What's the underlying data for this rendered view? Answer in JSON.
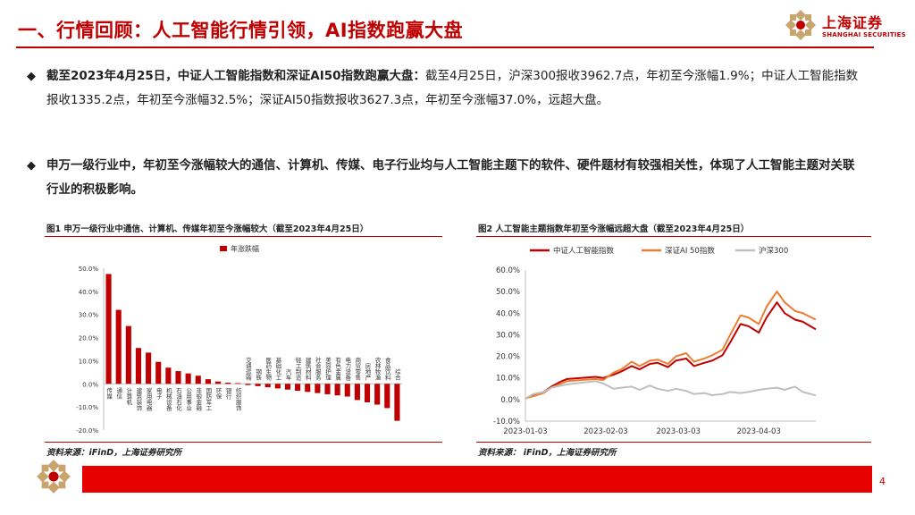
{
  "header": {
    "title": "一、行情回顾：人工智能行情引领，AI指数跑赢大盘",
    "logo_cn": "上海证券",
    "logo_en": "SHANGHAI SECURITIES"
  },
  "bullets": [
    {
      "icon": "diamond-bullet-icon",
      "bold": "截至2023年4月25日，中证人工智能指数和深证AI50指数跑赢大盘：",
      "text": "截至4月25日，沪深300报收3962.7点，年初至今涨幅1.9%；中证人工智能指数报收1335.2点，年初至今涨幅32.5%；深证AI50指数报收3627.3点，年初至今涨幅37.0%，远超大盘。"
    },
    {
      "icon": "diamond-bullet-icon",
      "bold": "申万一级行业中，年初至今涨幅较大的通信、计算机、传媒、电子行业均与人工智能主题下的软件、硬件题材有较强相关性，体现了人工智能主题对关联行业的积极影响。",
      "text": ""
    }
  ],
  "figure1": {
    "caption": "图1  申万一级行业中通信、计算机、传媒年初至今涨幅较大（截至2023年4月25日）",
    "source": "资料来源：iFinD，上海证券研究所"
  },
  "figure2": {
    "caption": "图2  人工智能主题指数年初至今涨幅远超大盘（截至2023年4月25日）",
    "source": "资料来源：  iFinD，上海证券研究所"
  },
  "page_number": "4",
  "colors": {
    "brand_red": "#c00000",
    "footer_red": "#e60000",
    "bar_red": "#c00000",
    "line_dark_red": "#c00000",
    "line_orange": "#ed7d31",
    "line_gray": "#bfbfbf"
  },
  "chart_data": [
    {
      "type": "bar",
      "title": "",
      "legend": [
        "年涨跌幅"
      ],
      "legend_position": "top-center",
      "ylim": [
        -20,
        50
      ],
      "yticks": [
        "50.0%",
        "40.0%",
        "30.0%",
        "20.0%",
        "10.0%",
        "0.0%",
        "-10.0%",
        "-20.0%"
      ],
      "categories": [
        "传媒",
        "通信",
        "计算机",
        "建筑装饰",
        "家用电器",
        "电子",
        "机械设备",
        "石油石化",
        "公用事业",
        "非银金融",
        "国防军工",
        "环保",
        "银行",
        "纺织服饰",
        "交通运输",
        "钢铁",
        "医药生物",
        "基础化工",
        "汽车",
        "轻工制造",
        "建筑材料",
        "社会服务",
        "美容护理",
        "有色金属",
        "电力设备",
        "商贸零售",
        "房地产",
        "农林牧渔",
        "食品饮料",
        "综合"
      ],
      "series": [
        {
          "name": "年涨跌幅",
          "values": [
            47.5,
            32.0,
            25.0,
            15.5,
            13.5,
            9.5,
            7.0,
            5.5,
            4.5,
            3.5,
            2.0,
            1.0,
            0.5,
            0.3,
            -0.5,
            -1.0,
            -1.5,
            -2.0,
            -2.5,
            -3.0,
            -3.5,
            -4.0,
            -4.5,
            -5.0,
            -5.5,
            -7.0,
            -8.0,
            -9.0,
            -10.5,
            -16.0
          ]
        }
      ]
    },
    {
      "type": "line",
      "title": "",
      "legend": [
        "中证人工智能指数",
        "深证AI 50指数",
        "沪深300"
      ],
      "legend_position": "top-center",
      "ylim": [
        -10,
        60
      ],
      "yticks": [
        "60.0%",
        "50.0%",
        "40.0%",
        "30.0%",
        "20.0%",
        "10.0%",
        "0.0%",
        "-10.0%"
      ],
      "xticks": [
        "2023-01-03",
        "2023-02-03",
        "2023-03-03",
        "2023-04-03"
      ],
      "x_range": [
        "2023-01-03",
        "2023-04-25"
      ],
      "series": [
        {
          "name": "中证人工智能指数",
          "color": "#c00000",
          "x": [
            "2023-01-03",
            "2023-01-06",
            "2023-01-10",
            "2023-01-13",
            "2023-01-17",
            "2023-01-19",
            "2023-01-30",
            "2023-02-02",
            "2023-02-06",
            "2023-02-09",
            "2023-02-13",
            "2023-02-16",
            "2023-02-20",
            "2023-02-23",
            "2023-02-27",
            "2023-03-02",
            "2023-03-06",
            "2023-03-09",
            "2023-03-13",
            "2023-03-16",
            "2023-03-20",
            "2023-03-23",
            "2023-03-27",
            "2023-03-30",
            "2023-04-03",
            "2023-04-06",
            "2023-04-10",
            "2023-04-13",
            "2023-04-17",
            "2023-04-20",
            "2023-04-25"
          ],
          "values": [
            0.5,
            2.0,
            3.5,
            6.0,
            8.5,
            9.5,
            10.5,
            10.0,
            11.5,
            13.0,
            15.5,
            14.0,
            16.5,
            17.0,
            15.0,
            18.0,
            19.0,
            15.5,
            17.0,
            18.0,
            20.5,
            26.5,
            35.0,
            34.0,
            31.0,
            38.0,
            45.0,
            40.0,
            37.0,
            36.0,
            32.5
          ]
        },
        {
          "name": "深证AI 50指数",
          "color": "#ed7d31",
          "x": [
            "2023-01-03",
            "2023-01-06",
            "2023-01-10",
            "2023-01-13",
            "2023-01-17",
            "2023-01-19",
            "2023-01-30",
            "2023-02-02",
            "2023-02-06",
            "2023-02-09",
            "2023-02-13",
            "2023-02-16",
            "2023-02-20",
            "2023-02-23",
            "2023-02-27",
            "2023-03-02",
            "2023-03-06",
            "2023-03-09",
            "2023-03-13",
            "2023-03-16",
            "2023-03-20",
            "2023-03-23",
            "2023-03-27",
            "2023-03-30",
            "2023-04-03",
            "2023-04-06",
            "2023-04-10",
            "2023-04-13",
            "2023-04-17",
            "2023-04-20",
            "2023-04-25"
          ],
          "values": [
            0.5,
            1.5,
            3.0,
            5.5,
            7.5,
            8.5,
            9.5,
            9.0,
            12.5,
            14.0,
            17.5,
            15.5,
            18.0,
            18.5,
            16.5,
            20.0,
            21.5,
            17.5,
            19.0,
            20.5,
            23.0,
            30.0,
            39.0,
            38.0,
            35.0,
            43.0,
            50.0,
            45.0,
            41.0,
            40.0,
            37.0
          ]
        },
        {
          "name": "沪深300",
          "color": "#bfbfbf",
          "x": [
            "2023-01-03",
            "2023-01-06",
            "2023-01-10",
            "2023-01-13",
            "2023-01-17",
            "2023-01-19",
            "2023-01-30",
            "2023-02-02",
            "2023-02-06",
            "2023-02-09",
            "2023-02-13",
            "2023-02-16",
            "2023-02-20",
            "2023-02-23",
            "2023-02-27",
            "2023-03-02",
            "2023-03-06",
            "2023-03-09",
            "2023-03-13",
            "2023-03-16",
            "2023-03-20",
            "2023-03-23",
            "2023-03-27",
            "2023-03-30",
            "2023-04-03",
            "2023-04-06",
            "2023-04-10",
            "2023-04-13",
            "2023-04-17",
            "2023-04-20",
            "2023-04-25"
          ],
          "values": [
            0.5,
            2.5,
            3.5,
            5.5,
            6.5,
            7.0,
            8.5,
            7.5,
            5.0,
            5.5,
            6.0,
            4.5,
            6.5,
            5.0,
            4.0,
            5.0,
            4.0,
            2.5,
            3.0,
            2.0,
            2.5,
            3.5,
            3.0,
            3.5,
            4.5,
            5.0,
            5.5,
            4.5,
            6.0,
            3.5,
            1.9
          ]
        }
      ]
    }
  ]
}
